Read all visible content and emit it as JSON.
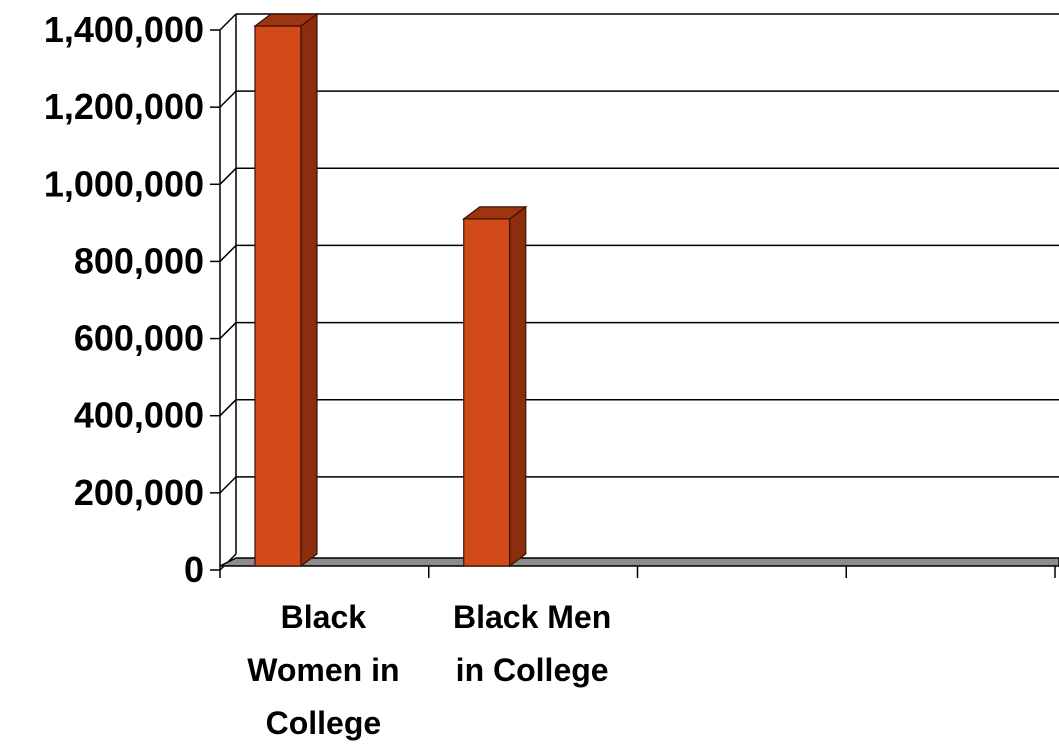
{
  "chart_data": {
    "type": "bar",
    "title": "",
    "xlabel": "",
    "ylabel": "",
    "categories": [
      "Black Women in College",
      "Black Men in College",
      "",
      ""
    ],
    "category_label_lines": [
      [
        "Black",
        "Women in",
        "College"
      ],
      [
        "Black Men",
        "in College"
      ],
      [],
      []
    ],
    "values": [
      1400000,
      900000,
      null,
      null
    ],
    "ylim": [
      0,
      1400000
    ],
    "yticks": [
      0,
      200000,
      400000,
      600000,
      800000,
      1000000,
      1200000,
      1400000
    ],
    "ytick_labels": [
      "0",
      "200,000",
      "400,000",
      "600,000",
      "800,000",
      "1,000,000",
      "1,200,000",
      "1,400,000"
    ],
    "grid": true,
    "legend": "none",
    "colors": {
      "bar_front": "#D24A18",
      "bar_side": "#8C2E0D",
      "bar_top": "#9E3511",
      "bar_edge": "#3A1205",
      "floor": "#8C8C8C",
      "grid": "#000000"
    }
  }
}
